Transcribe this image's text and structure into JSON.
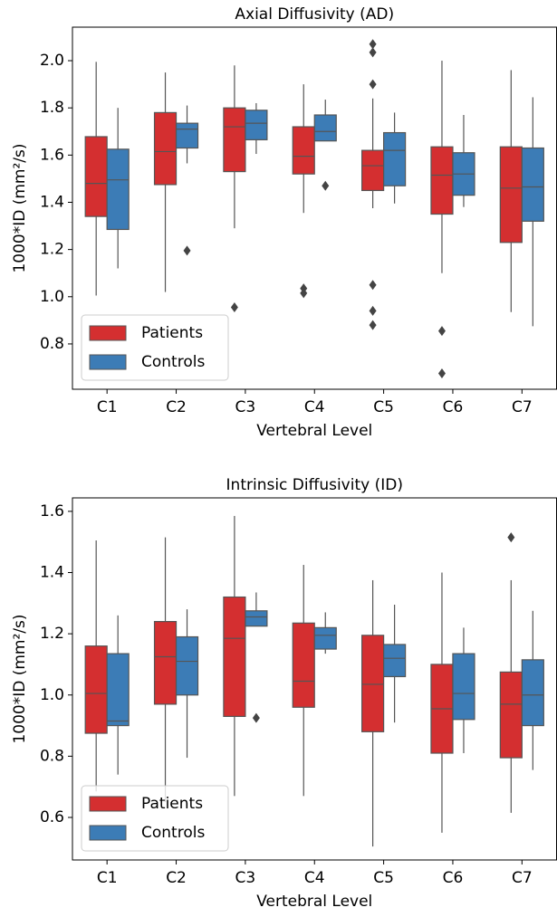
{
  "chart_data": [
    {
      "type": "box",
      "title": "Axial Diffusivity (AD)",
      "xlabel": "Vertebral Level",
      "ylabel": "1000*ID (mm²/s)",
      "categories": [
        "C1",
        "C2",
        "C3",
        "C4",
        "C5",
        "C6",
        "C7"
      ],
      "ylim": [
        0.608,
        2.142
      ],
      "yticks": [
        0.8,
        {
          "value": 1,
          "label": "1.0"
        },
        1.2,
        1.4,
        1.6,
        1.8,
        {
          "value": 2,
          "label": "2.0"
        }
      ],
      "legend": "lower left",
      "series": [
        {
          "name": "Patients",
          "color": "#d42f30",
          "whislo": [
            1.005,
            1.02,
            1.29,
            1.355,
            1.375,
            1.1,
            0.935
          ],
          "q1": [
            1.34,
            1.475,
            1.53,
            1.52,
            1.45,
            1.35,
            1.23
          ],
          "median": [
            1.48,
            1.615,
            1.72,
            1.595,
            1.555,
            1.515,
            1.46
          ],
          "q3": [
            1.678,
            1.78,
            1.8,
            1.72,
            1.62,
            1.635,
            1.635
          ],
          "whishi": [
            1.995,
            1.95,
            1.98,
            1.9,
            1.84,
            2.0,
            1.96
          ],
          "fliers": [
            [],
            [],
            [
              0.955
            ],
            [
              1.035,
              1.015
            ],
            [
              2.07,
              2.035,
              1.9,
              1.05,
              0.94,
              0.88
            ],
            [
              0.855,
              0.675
            ],
            []
          ]
        },
        {
          "name": "Controls",
          "color": "#3c7cb6",
          "whislo": [
            1.12,
            1.565,
            1.605,
            1.66,
            1.395,
            1.38,
            0.875
          ],
          "q1": [
            1.285,
            1.63,
            1.665,
            1.66,
            1.47,
            1.43,
            1.32
          ],
          "median": [
            1.495,
            1.71,
            1.735,
            1.7,
            1.62,
            1.52,
            1.465
          ],
          "q3": [
            1.625,
            1.735,
            1.79,
            1.77,
            1.695,
            1.61,
            1.63
          ],
          "whishi": [
            1.8,
            1.81,
            1.82,
            1.835,
            1.78,
            1.77,
            1.845
          ],
          "fliers": [
            [],
            [
              1.195
            ],
            [],
            [
              1.47
            ],
            [],
            [],
            []
          ]
        }
      ]
    },
    {
      "type": "box",
      "title": "Intrinsic Diffusivity (ID)",
      "xlabel": "Vertebral Level",
      "ylabel": "1000*ID (mm²/s)",
      "categories": [
        "C1",
        "C2",
        "C3",
        "C4",
        "C5",
        "C6",
        "C7"
      ],
      "ylim": [
        0.461,
        1.644
      ],
      "yticks": [
        0.6,
        0.8,
        {
          "value": 1,
          "label": "1.0"
        },
        1.2,
        1.4,
        1.6
      ],
      "legend": "lower left",
      "series": [
        {
          "name": "Patients",
          "color": "#d42f30",
          "whislo": [
            0.685,
            0.65,
            0.67,
            0.67,
            0.505,
            0.55,
            0.615
          ],
          "q1": [
            0.875,
            0.97,
            0.93,
            0.96,
            0.88,
            0.81,
            0.795
          ],
          "median": [
            1.005,
            1.125,
            1.185,
            1.045,
            1.035,
            0.955,
            0.97
          ],
          "q3": [
            1.16,
            1.24,
            1.32,
            1.235,
            1.195,
            1.1,
            1.075
          ],
          "whishi": [
            1.505,
            1.515,
            1.585,
            1.425,
            1.375,
            1.4,
            1.375
          ],
          "fliers": [
            [],
            [],
            [],
            [],
            [],
            [],
            [
              1.515
            ]
          ]
        },
        {
          "name": "Controls",
          "color": "#3c7cb6",
          "whislo": [
            0.74,
            0.795,
            1.225,
            1.135,
            0.91,
            0.81,
            0.755
          ],
          "q1": [
            0.9,
            1.0,
            1.225,
            1.15,
            1.06,
            0.92,
            0.9
          ],
          "median": [
            0.915,
            1.11,
            1.255,
            1.195,
            1.12,
            1.005,
            1.0
          ],
          "q3": [
            1.135,
            1.19,
            1.275,
            1.22,
            1.165,
            1.135,
            1.115
          ],
          "whishi": [
            1.26,
            1.28,
            1.335,
            1.27,
            1.295,
            1.22,
            1.275
          ],
          "fliers": [
            [],
            [],
            [
              0.925
            ],
            [],
            [],
            [],
            []
          ]
        }
      ]
    }
  ]
}
